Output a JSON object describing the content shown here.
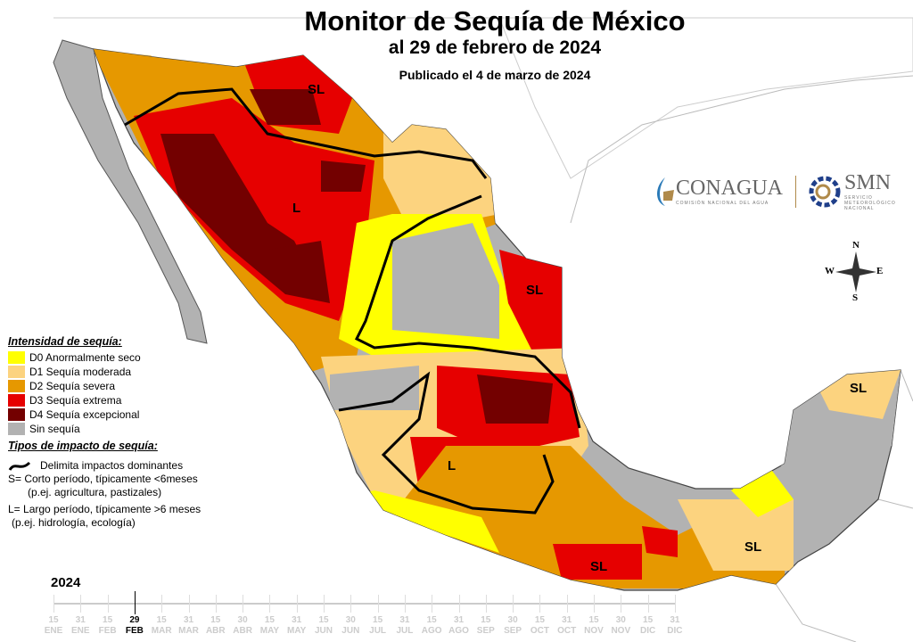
{
  "title": "Monitor de Sequía de México",
  "subtitle": "al 29 de febrero de 2024",
  "published": "Publicado el 4 de marzo de 2024",
  "colors": {
    "D0": "#ffff00",
    "D1": "#fcd37f",
    "D2": "#e69800",
    "D3": "#e60000",
    "D4": "#730000",
    "none": "#b2b2b2"
  },
  "legend": {
    "intensity_title": "Intensidad de sequía:",
    "items": [
      {
        "code": "D0",
        "label": "D0 Anormalmente seco",
        "color": "#ffff00"
      },
      {
        "code": "D1",
        "label": "D1 Sequía moderada",
        "color": "#fcd37f"
      },
      {
        "code": "D2",
        "label": "D2 Sequía severa",
        "color": "#e69800"
      },
      {
        "code": "D3",
        "label": "D3 Sequía extrema",
        "color": "#e60000"
      },
      {
        "code": "D4",
        "label": "D4 Sequía excepcional",
        "color": "#730000"
      },
      {
        "code": "none",
        "label": "Sin sequía",
        "color": "#b2b2b2"
      }
    ],
    "impact_title": "Tipos de impacto de sequía:",
    "line_label": "Delimita impactos dominantes",
    "s_line1": "S= Corto período, típicamente <6meses",
    "s_line2": "(p.ej. agricultura, pastizales)",
    "l_line1": "L= Largo período, típicamente >6 meses",
    "l_line2": "(p.ej. hidrología, ecología)"
  },
  "map_labels": [
    "SL",
    "L",
    "SL",
    "L",
    "SL",
    "SL",
    "SL"
  ],
  "logos": {
    "conagua": "CONAGUA",
    "conagua_sub": "COMISIÓN NACIONAL DEL AGUA",
    "smn": "SMN",
    "smn_sub": "SERVICIO METEOROLÓGICO NACIONAL"
  },
  "compass": {
    "n": "N",
    "s": "S",
    "e": "E",
    "w": "W"
  },
  "timeline": {
    "year": "2024",
    "current": "29 FEB",
    "ticks": [
      {
        "day": "15",
        "month": "ENE"
      },
      {
        "day": "31",
        "month": "ENE"
      },
      {
        "day": "15",
        "month": "FEB"
      },
      {
        "day": "29",
        "month": "FEB",
        "current": true
      },
      {
        "day": "15",
        "month": "MAR"
      },
      {
        "day": "31",
        "month": "MAR"
      },
      {
        "day": "15",
        "month": "ABR"
      },
      {
        "day": "30",
        "month": "ABR"
      },
      {
        "day": "15",
        "month": "MAY"
      },
      {
        "day": "31",
        "month": "MAY"
      },
      {
        "day": "15",
        "month": "JUN"
      },
      {
        "day": "30",
        "month": "JUN"
      },
      {
        "day": "15",
        "month": "JUL"
      },
      {
        "day": "31",
        "month": "JUL"
      },
      {
        "day": "15",
        "month": "AGO"
      },
      {
        "day": "31",
        "month": "AGO"
      },
      {
        "day": "15",
        "month": "SEP"
      },
      {
        "day": "30",
        "month": "SEP"
      },
      {
        "day": "15",
        "month": "OCT"
      },
      {
        "day": "31",
        "month": "OCT"
      },
      {
        "day": "15",
        "month": "NOV"
      },
      {
        "day": "30",
        "month": "NOV"
      },
      {
        "day": "15",
        "month": "DIC"
      },
      {
        "day": "31",
        "month": "DIC"
      }
    ]
  }
}
